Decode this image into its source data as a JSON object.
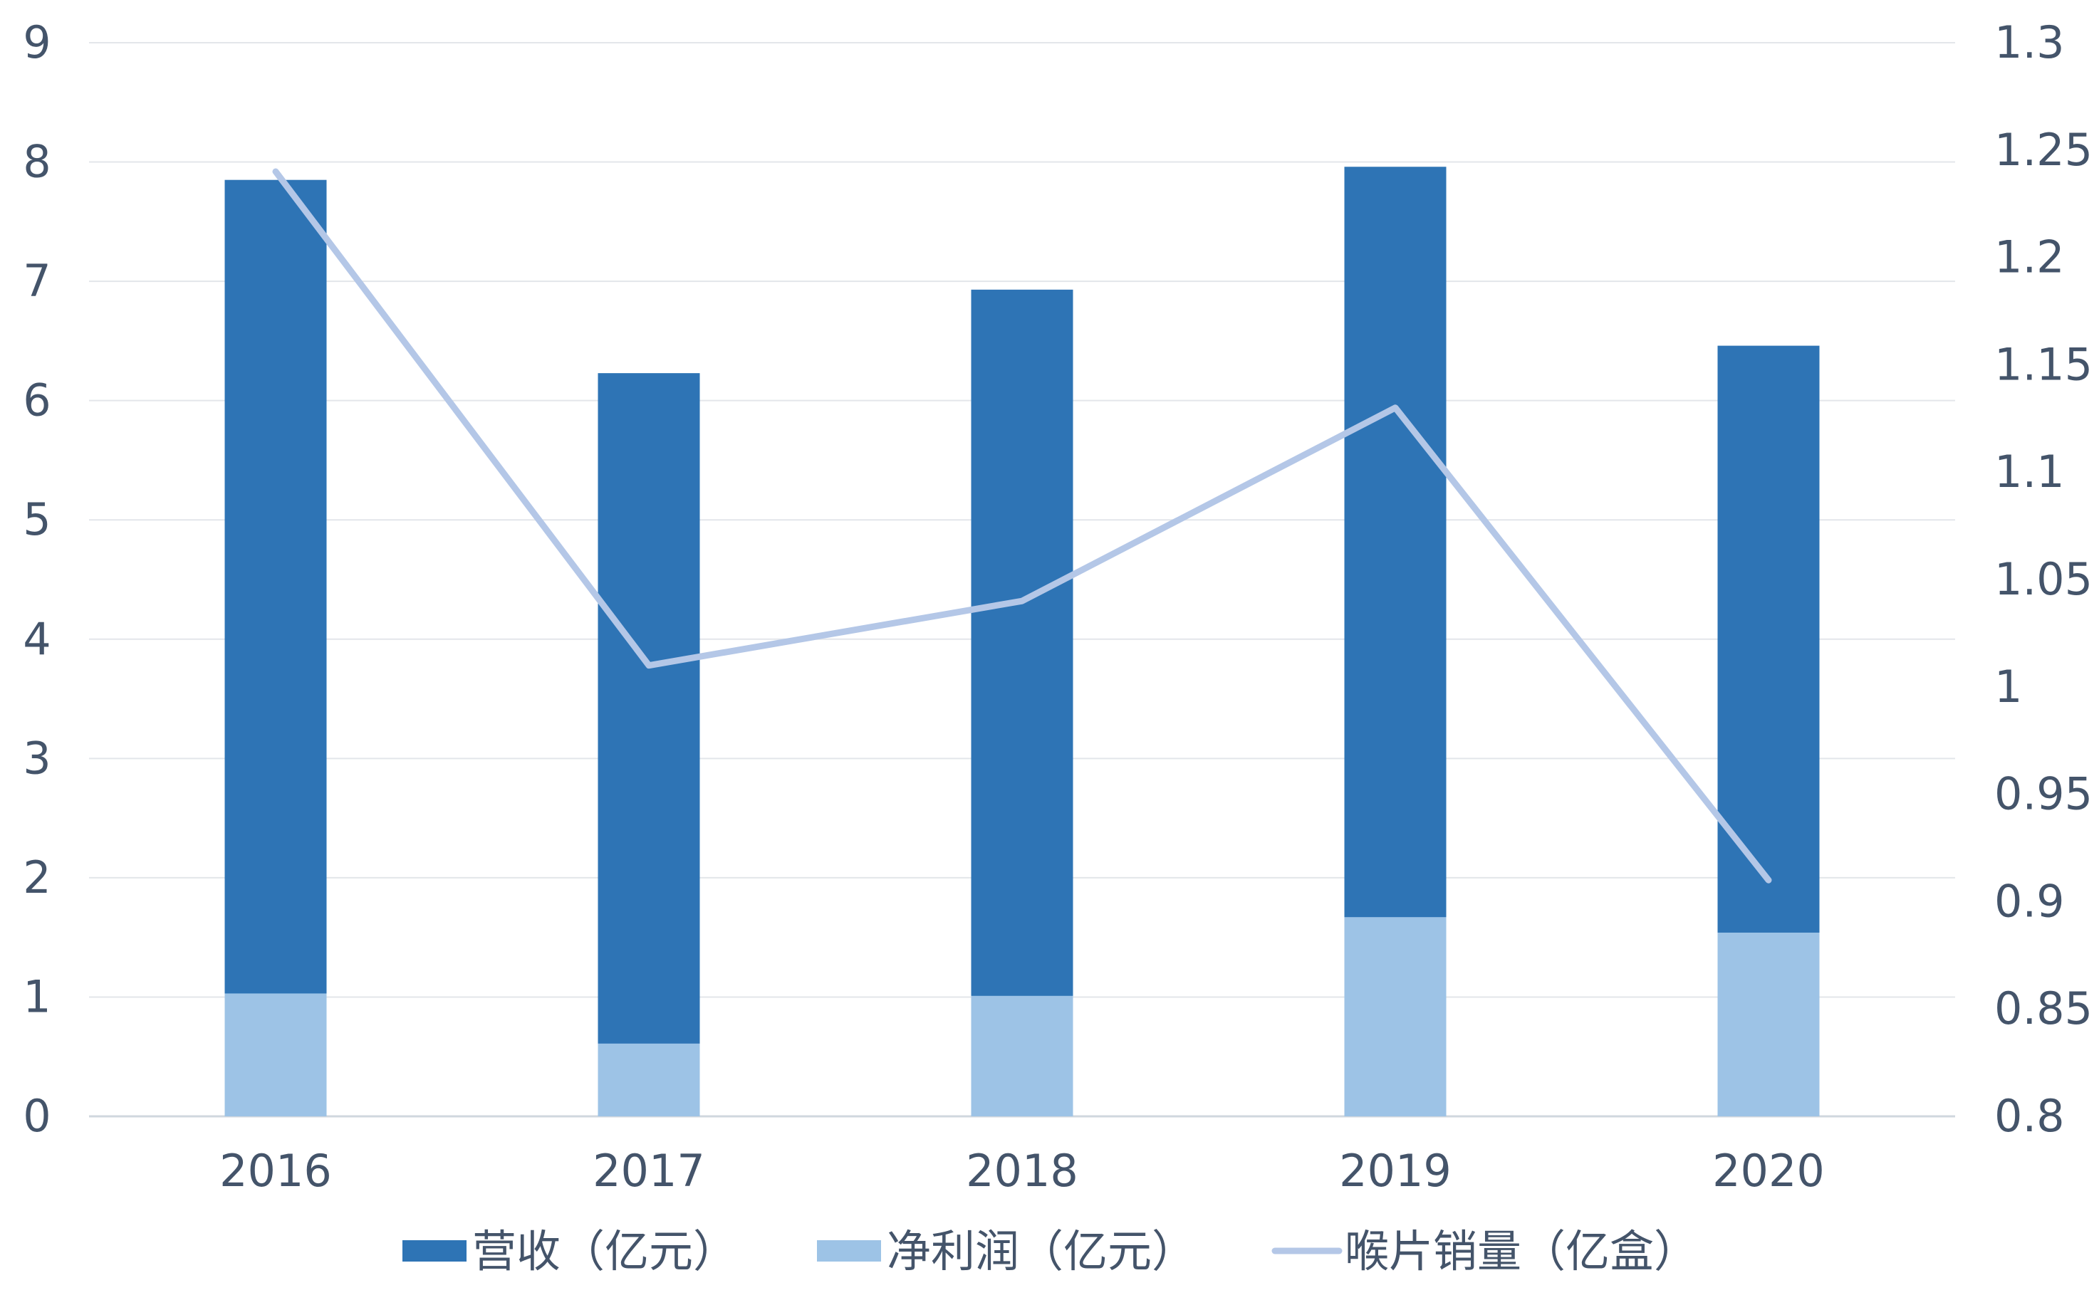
{
  "chart_data": {
    "type": "bar",
    "categories": [
      "2016",
      "2017",
      "2018",
      "2019",
      "2020"
    ],
    "series": [
      {
        "name": "营收（亿元）",
        "kind": "bar",
        "axis": "left",
        "color": "#2e74b5",
        "values": [
          7.85,
          6.23,
          6.93,
          7.96,
          6.46
        ]
      },
      {
        "name": "净利润（亿元）",
        "kind": "bar",
        "axis": "left",
        "color": "#9dc3e6",
        "values": [
          1.03,
          0.61,
          1.01,
          1.67,
          1.54
        ]
      },
      {
        "name": "喉片销量（亿盒）",
        "kind": "line",
        "axis": "right",
        "color": "#b4c7e7",
        "values": [
          1.24,
          1.01,
          1.04,
          1.13,
          0.91
        ]
      }
    ],
    "y_left": {
      "min": 0,
      "max": 9,
      "ticks": [
        "0",
        "1",
        "2",
        "3",
        "4",
        "5",
        "6",
        "7",
        "8",
        "9"
      ]
    },
    "y_right": {
      "min": 0.8,
      "max": 1.3,
      "ticks": [
        "0.8",
        "0.85",
        "0.9",
        "0.95",
        "1",
        "1.05",
        "1.1",
        "1.15",
        "1.2",
        "1.25",
        "1.3"
      ]
    },
    "grid": true,
    "legend_position": "bottom",
    "title": "",
    "xlabel": "",
    "ylabel": ""
  }
}
